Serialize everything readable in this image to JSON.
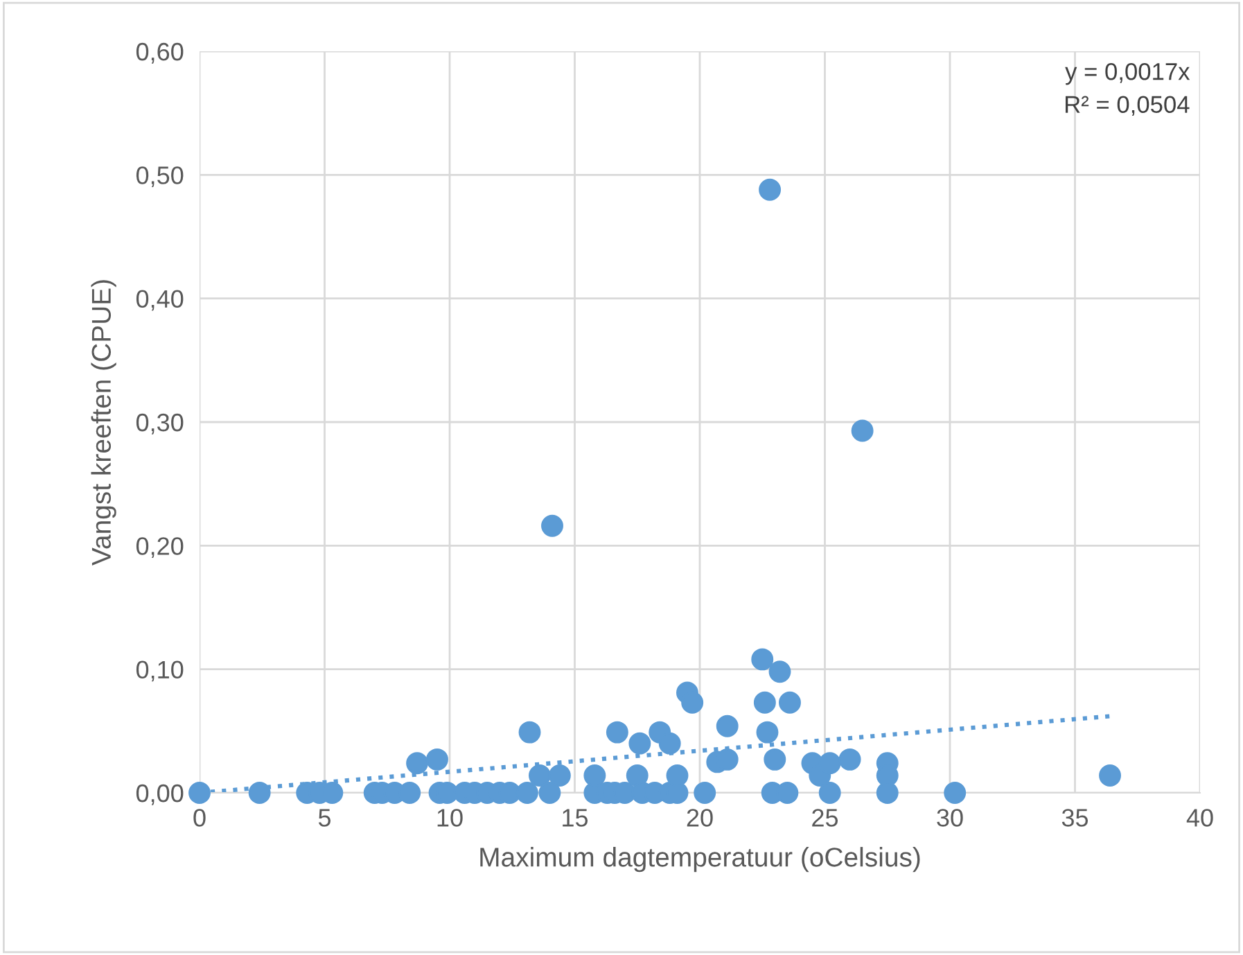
{
  "chart_data": {
    "type": "scatter",
    "xlabel": "Maximum dagtemperatuur (oCelsius)",
    "ylabel": "Vangst kreeften (CPUE)",
    "annotations": [
      "y = 0,0017x\nR² = 0,0504"
    ],
    "xlim": [
      0,
      40
    ],
    "xticks": [
      0,
      5,
      10,
      15,
      20,
      25,
      30,
      35,
      40
    ],
    "ylim": [
      0,
      0.6
    ],
    "yticks": [
      {
        "value": 0,
        "label": "0,00"
      },
      {
        "value": 0.1,
        "label": "0,10"
      },
      {
        "value": 0.2,
        "label": "0,20"
      },
      {
        "value": 0.3,
        "label": "0,30"
      },
      {
        "value": 0.4,
        "label": "0,40"
      },
      {
        "value": 0.5,
        "label": "0,50"
      },
      {
        "value": 0.6,
        "label": "0,60"
      }
    ],
    "grid": true,
    "legend": false,
    "series": [
      {
        "color": "#5b9bd5",
        "marker": "circle",
        "x": [
          0,
          2.4,
          4.3,
          4.8,
          5.3,
          7,
          7.3,
          7.8,
          8.4,
          8.7,
          9.5,
          9.6,
          9.9,
          10.6,
          11,
          11.5,
          12,
          12.4,
          13.1,
          13.2,
          13.6,
          14,
          14.1,
          14.4,
          15.8,
          15.8,
          16.3,
          16.6,
          16.7,
          17,
          17.5,
          17.6,
          17.7,
          18.2,
          18.4,
          18.8,
          18.8,
          19.1,
          19.1,
          19.5,
          19.7,
          20.2,
          20.7,
          21.1,
          21.1,
          22.5,
          22.6,
          22.7,
          22.8,
          22.9,
          23.0,
          23.2,
          23.5,
          23.6,
          24.5,
          24.8,
          25.2,
          25.2,
          26.0,
          26.5,
          27.5,
          27.5,
          27.5,
          30.2,
          36.4
        ],
        "values": [
          0,
          0,
          0,
          0,
          0,
          0,
          0,
          0,
          0,
          0.024,
          0.027,
          0,
          0,
          0,
          0,
          0,
          0,
          0,
          0,
          0.049,
          0.014,
          0,
          0.216,
          0.014,
          0,
          0.014,
          0,
          0,
          0.049,
          0,
          0.014,
          0.04,
          0,
          0,
          0.049,
          0.04,
          0,
          0,
          0.014,
          0.081,
          0.073,
          0,
          0.025,
          0.054,
          0.027,
          0.108,
          0.073,
          0.049,
          0.488,
          0,
          0.027,
          0.098,
          0,
          0.073,
          0.024,
          0.014,
          0.024,
          0,
          0.027,
          0.293,
          0.024,
          0.014,
          0,
          0,
          0.014
        ]
      },
      {
        "type": "line",
        "color": "#5b9bd5",
        "line_style": "dotted",
        "marker": "none",
        "x": [
          0,
          36.4
        ],
        "values": [
          0,
          0.062
        ]
      }
    ]
  }
}
